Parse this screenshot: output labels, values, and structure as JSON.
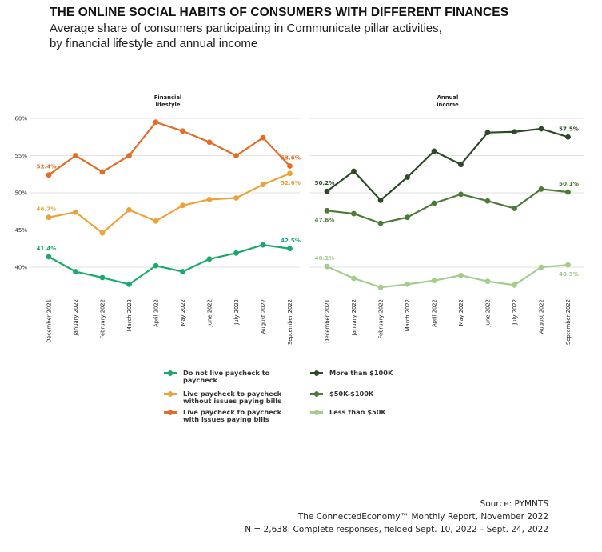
{
  "header": {
    "title": "THE ONLINE SOCIAL HABITS OF CONSUMERS WITH DIFFERENT FINANCES",
    "subtitle_line1": "Average share of consumers participating in Communicate pillar activities,",
    "subtitle_line2": "by financial lifestyle and annual income"
  },
  "footer": {
    "source": "Source: PYMNTS",
    "report": "The ConnectedEconomy™ Monthly Report, November 2022",
    "sample": "N = 2,638: Complete responses, fielded Sept. 10, 2022 – Sept. 24, 2022"
  },
  "chart_data": [
    {
      "type": "line",
      "panel_title": [
        "Financial",
        "lifestyle"
      ],
      "x": [
        "December 2021",
        "January 2022",
        "February 2022",
        "March 2022",
        "April 2022",
        "May 2022",
        "June 2022",
        "July 2022",
        "August 2022",
        "September 2022"
      ],
      "yticks": [
        40,
        45,
        50,
        55,
        60
      ],
      "ytick_labels": [
        "40%",
        "45%",
        "50%",
        "55%",
        "60%"
      ],
      "ylim": [
        36,
        61
      ],
      "grid": true,
      "series": [
        {
          "name": "Do not live paycheck to paycheck",
          "color": "#1aab6b",
          "values": [
            41.4,
            39.4,
            38.6,
            37.7,
            40.2,
            39.4,
            41.1,
            41.9,
            43.0,
            42.5
          ],
          "first_label": "41.4%",
          "last_label": "42.5%"
        },
        {
          "name": "Live paycheck to paycheck without issues paying bills",
          "color": "#eba23a",
          "values": [
            46.7,
            47.4,
            44.6,
            47.7,
            46.2,
            48.3,
            49.1,
            49.3,
            51.1,
            52.6
          ],
          "first_label": "46.7%",
          "last_label": "52.6%"
        },
        {
          "name": "Live paycheck to paycheck with issues paying bills",
          "color": "#e26d27",
          "values": [
            52.4,
            55.0,
            52.8,
            55.0,
            59.5,
            58.3,
            56.8,
            55.0,
            57.4,
            53.6
          ],
          "first_label": "52.4%",
          "last_label": "53.6%"
        }
      ]
    },
    {
      "type": "line",
      "panel_title": [
        "Annual",
        "income"
      ],
      "x": [
        "December 2021",
        "January 2022",
        "February 2022",
        "March 2022",
        "April 2022",
        "May 2022",
        "June 2022",
        "July 2022",
        "August 2022",
        "September 2022"
      ],
      "yticks": [
        40,
        45,
        50,
        55,
        60
      ],
      "ylim": [
        36,
        61
      ],
      "grid": true,
      "series": [
        {
          "name": "More than $100K",
          "color": "#2c4a26",
          "values": [
            50.2,
            52.9,
            49.0,
            52.1,
            55.6,
            53.8,
            58.1,
            58.2,
            58.6,
            57.5
          ],
          "first_label": "50.2%",
          "last_label": "57.5%"
        },
        {
          "name": "$50K-$100K",
          "color": "#4d7a3a",
          "values": [
            47.6,
            47.2,
            45.9,
            46.7,
            48.6,
            49.8,
            48.9,
            47.9,
            50.5,
            50.1
          ],
          "first_label": "47.6%",
          "last_label": "50.1%"
        },
        {
          "name": "Less than $50K",
          "color": "#a5cb8e",
          "values": [
            40.1,
            38.5,
            37.3,
            37.7,
            38.2,
            38.9,
            38.1,
            37.6,
            40.0,
            40.3
          ],
          "first_label": "40.1%",
          "last_label": "40.3%"
        }
      ]
    }
  ]
}
